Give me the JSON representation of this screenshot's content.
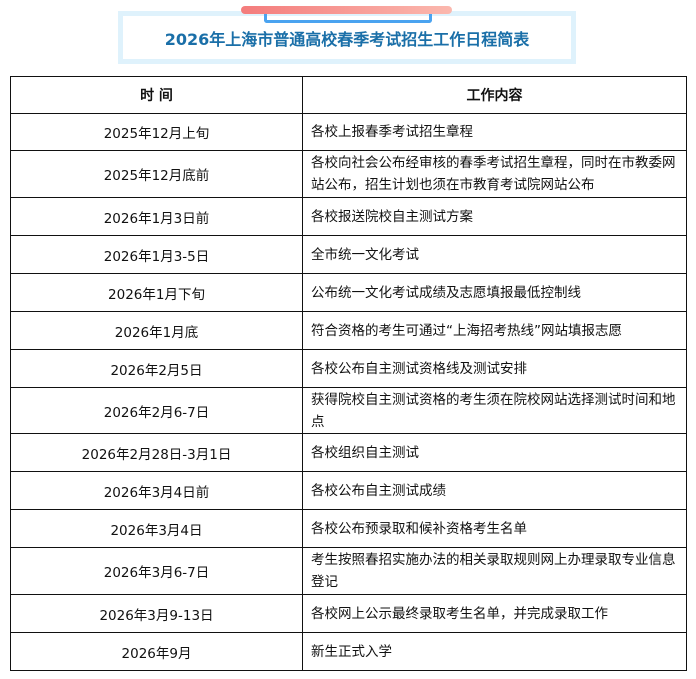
{
  "title": "2026年上海市普通高校春季考试招生工作日程简表",
  "headers": {
    "time": "时 间",
    "content": "工作内容"
  },
  "rows": [
    {
      "time": "2025年12月上旬",
      "content": "各校上报春季考试招生章程"
    },
    {
      "time": "2025年12月底前",
      "content": "各校向社会公布经审核的春季考试招生章程，同时在市教委网站公布，招生计划也须在市教育考试院网站公布"
    },
    {
      "time": "2026年1月3日前",
      "content": "各校报送院校自主测试方案"
    },
    {
      "time": "2026年1月3-5日",
      "content": "全市统一文化考试"
    },
    {
      "time": "2026年1月下旬",
      "content": "公布统一文化考试成绩及志愿填报最低控制线"
    },
    {
      "time": "2026年1月底",
      "content": "符合资格的考生可通过“上海招考热线”网站填报志愿"
    },
    {
      "time": "2026年2月5日",
      "content": "各校公布自主测试资格线及测试安排"
    },
    {
      "time": "2026年2月6-7日",
      "content": "获得院校自主测试资格的考生须在院校网站选择测试时间和地点"
    },
    {
      "time": "2026年2月28日-3月1日",
      "content": "各校组织自主测试"
    },
    {
      "time": "2026年3月4日前",
      "content": "各校公布自主测试成绩"
    },
    {
      "time": "2026年3月4日",
      "content": "各校公布预录取和候补资格考生名单"
    },
    {
      "time": "2026年3月6-7日",
      "content": "考生按照春招实施办法的相关录取规则网上办理录取专业信息登记"
    },
    {
      "time": "2026年3月9-13日",
      "content": "各校网上公示最终录取考生名单，并完成录取工作"
    },
    {
      "time": "2026年9月",
      "content": "新生正式入学"
    }
  ]
}
